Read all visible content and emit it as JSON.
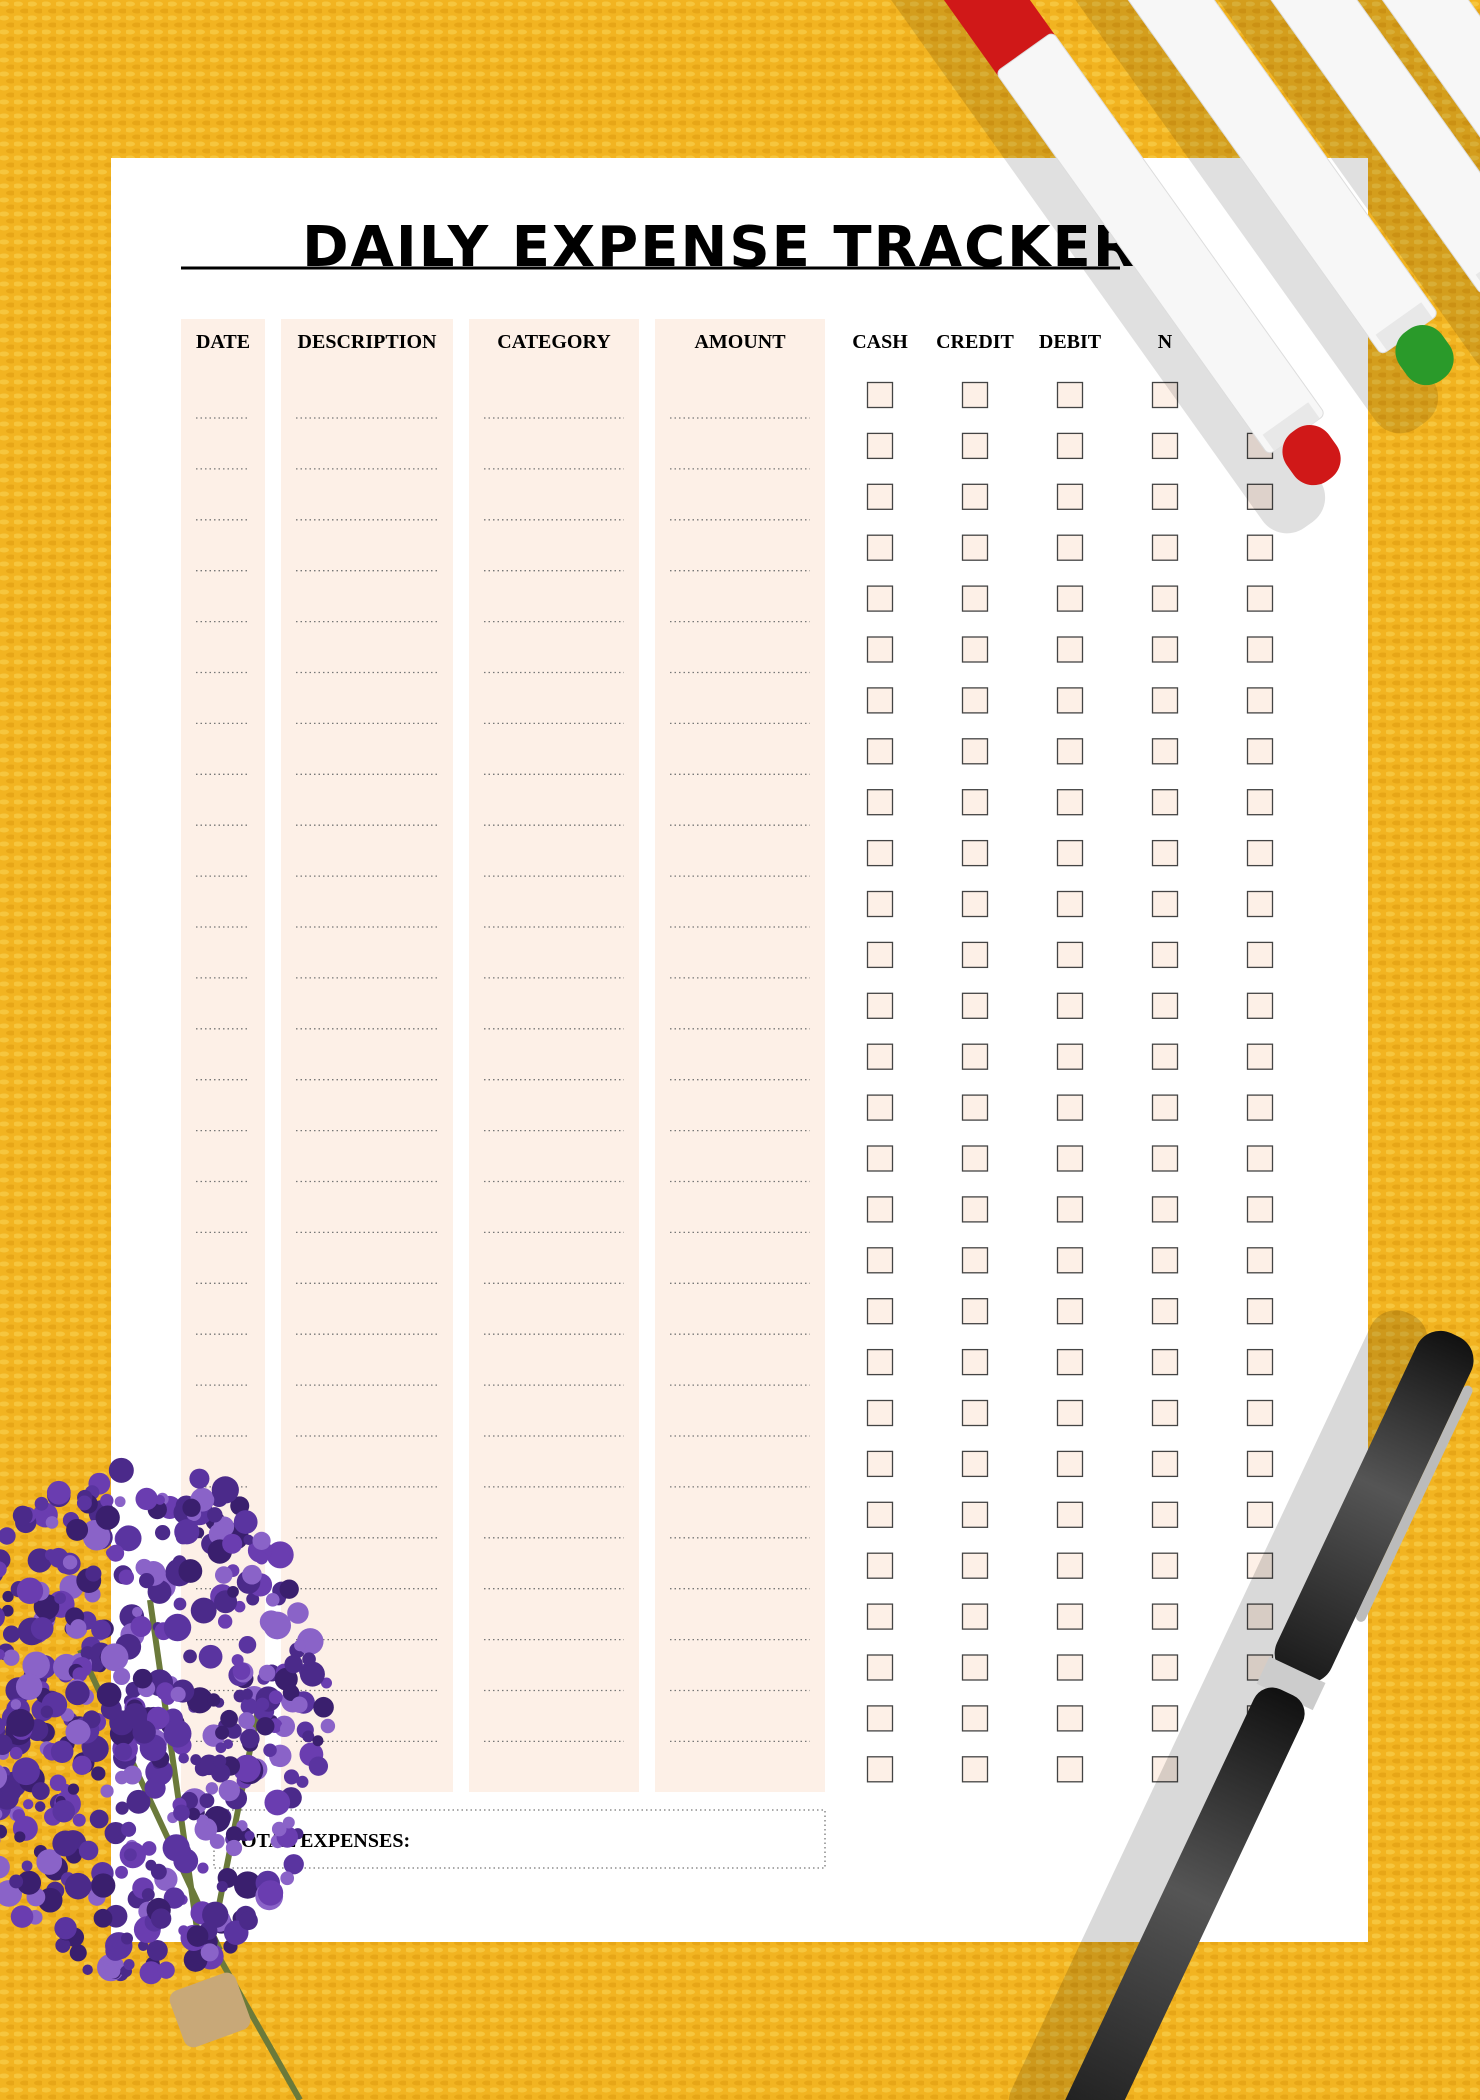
{
  "header": {
    "title": "DAILY EXPENSE TRACKER"
  },
  "table": {
    "columns": [
      "DATE",
      "DESCRIPTION",
      "CATEGORY",
      "AMOUNT"
    ],
    "checkbox_columns": [
      "CASH",
      "CREDIT",
      "DEBIT",
      "N"
    ]
  },
  "footer": {
    "total_label": "TOTAL EXPENSES:"
  }
}
